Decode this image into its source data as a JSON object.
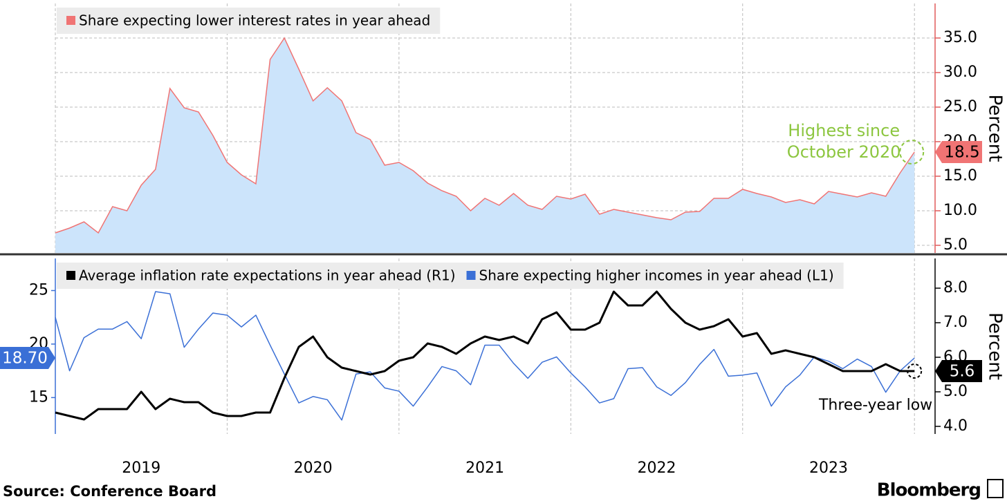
{
  "chart_data": [
    {
      "type": "area",
      "x": [
        2019,
        2019.083,
        2019.167,
        2019.25,
        2019.333,
        2019.417,
        2019.5,
        2019.583,
        2019.667,
        2019.75,
        2019.833,
        2019.917,
        2020,
        2020.083,
        2020.167,
        2020.25,
        2020.333,
        2020.417,
        2020.5,
        2020.583,
        2020.667,
        2020.75,
        2020.833,
        2020.917,
        2021,
        2021.083,
        2021.167,
        2021.25,
        2021.333,
        2021.417,
        2021.5,
        2021.583,
        2021.667,
        2021.75,
        2021.833,
        2021.917,
        2022,
        2022.083,
        2022.167,
        2022.25,
        2022.333,
        2022.417,
        2022.5,
        2022.583,
        2022.667,
        2022.75,
        2022.833,
        2022.917,
        2023,
        2023.083,
        2023.167,
        2023.25,
        2023.333,
        2023.417,
        2023.5,
        2023.583,
        2023.667,
        2023.75,
        2023.833,
        2023.917,
        2024
      ],
      "series": [
        {
          "name": "Share expecting lower interest rates in year ahead",
          "color": "#f07474",
          "fill": "#cce4fb",
          "axis": "y",
          "values": [
            6.8,
            7.5,
            8.4,
            6.8,
            10.6,
            10.0,
            13.7,
            16.0,
            27.7,
            24.9,
            24.3,
            20.9,
            17.0,
            15.2,
            13.9,
            31.9,
            35.0,
            30.5,
            25.9,
            27.8,
            25.9,
            21.3,
            20.3,
            16.6,
            17.0,
            15.8,
            14.0,
            12.9,
            12.1,
            10.0,
            11.8,
            10.8,
            12.5,
            10.8,
            10.2,
            12.1,
            11.7,
            12.4,
            9.5,
            10.2,
            9.8,
            9.4,
            9.0,
            8.7,
            9.8,
            9.9,
            11.8,
            11.8,
            13.1,
            12.5,
            12.0,
            11.2,
            11.6,
            11.0,
            12.8,
            12.4,
            12.0,
            12.6,
            12.1,
            15.5,
            18.5
          ]
        }
      ],
      "xlim": [
        2019,
        2024.12
      ],
      "xgrid": [
        2019,
        2020,
        2021,
        2022,
        2023,
        2024
      ],
      "ylim": [
        3.9,
        40
      ],
      "y_axis_side": "right",
      "y_axis_color": "#e05a5a",
      "ylabel": "Percent",
      "yticks": [
        {
          "value": 5,
          "label": "5.0"
        },
        {
          "value": 10,
          "label": "10.0"
        },
        {
          "value": 15,
          "label": "15.0"
        },
        {
          "value": 20,
          "label": "20.0"
        },
        {
          "value": 25,
          "label": "25.0"
        },
        {
          "value": 30,
          "label": "30.0"
        },
        {
          "value": 35,
          "label": "35.0"
        }
      ],
      "grid": "both",
      "annotations": [
        "Highest since",
        "October 2020"
      ],
      "annotation_color": "#8cc63f"
    },
    {
      "type": "line",
      "x": [
        2019,
        2019.083,
        2019.167,
        2019.25,
        2019.333,
        2019.417,
        2019.5,
        2019.583,
        2019.667,
        2019.75,
        2019.833,
        2019.917,
        2020,
        2020.083,
        2020.167,
        2020.25,
        2020.333,
        2020.417,
        2020.5,
        2020.583,
        2020.667,
        2020.75,
        2020.833,
        2020.917,
        2021,
        2021.083,
        2021.167,
        2021.25,
        2021.333,
        2021.417,
        2021.5,
        2021.583,
        2021.667,
        2021.75,
        2021.833,
        2021.917,
        2022,
        2022.083,
        2022.167,
        2022.25,
        2022.333,
        2022.417,
        2022.5,
        2022.583,
        2022.667,
        2022.75,
        2022.833,
        2022.917,
        2023,
        2023.083,
        2023.167,
        2023.25,
        2023.333,
        2023.417,
        2023.5,
        2023.583,
        2023.667,
        2023.75,
        2023.833,
        2023.917,
        2024
      ],
      "series": [
        {
          "name": "Average inflation rate expectations in year ahead (R1)",
          "color": "#000000",
          "axis": "y2",
          "width": 3,
          "values": [
            4.4,
            4.3,
            4.2,
            4.5,
            4.5,
            4.5,
            5.0,
            4.5,
            4.8,
            4.7,
            4.7,
            4.4,
            4.3,
            4.3,
            4.4,
            4.4,
            5.4,
            6.3,
            6.6,
            6.0,
            5.7,
            5.6,
            5.5,
            5.6,
            5.9,
            6.0,
            6.4,
            6.3,
            6.1,
            6.4,
            6.6,
            6.5,
            6.6,
            6.4,
            7.1,
            7.3,
            6.8,
            6.8,
            7.0,
            7.9,
            7.5,
            7.5,
            7.9,
            7.4,
            7.0,
            6.8,
            6.9,
            7.1,
            6.6,
            6.7,
            6.1,
            6.2,
            6.1,
            6.0,
            5.8,
            5.6,
            5.6,
            5.6,
            5.8,
            5.6,
            5.6
          ]
        },
        {
          "name": "Share expecting higher incomes in year ahead (L1)",
          "color": "#3a6fd6",
          "axis": "y",
          "width": 1.5,
          "values": [
            22.5,
            17.5,
            20.6,
            21.4,
            21.4,
            22.1,
            20.5,
            24.9,
            24.7,
            19.7,
            21.4,
            22.9,
            22.7,
            21.6,
            22.7,
            19.9,
            17.2,
            14.5,
            15.1,
            14.8,
            12.9,
            17.2,
            17.4,
            15.9,
            15.6,
            14.2,
            16.0,
            17.9,
            17.5,
            16.2,
            19.9,
            19.9,
            18.2,
            16.8,
            18.3,
            18.8,
            17.3,
            16.0,
            14.5,
            14.9,
            17.7,
            17.8,
            16.0,
            15.2,
            16.4,
            18.1,
            19.5,
            17.0,
            17.1,
            17.3,
            14.2,
            16.0,
            17.1,
            18.8,
            18.4,
            17.7,
            18.6,
            17.9,
            15.5,
            17.5,
            18.7
          ],
          "value_labels": [
            null,
            null,
            null,
            null,
            null,
            null,
            null,
            null,
            null,
            null,
            null,
            null,
            null,
            null,
            null,
            null,
            null,
            null,
            null,
            null,
            null,
            null,
            null,
            null,
            null,
            null,
            null,
            null,
            null,
            null,
            null,
            null,
            null,
            null,
            null,
            null,
            null,
            null,
            null,
            null,
            null,
            null,
            null,
            null,
            null,
            null,
            null,
            null,
            null,
            null,
            null,
            null,
            null,
            null,
            null,
            null,
            null,
            null,
            null,
            null,
            "18.70"
          ]
        }
      ],
      "xlim": [
        2019,
        2024.12
      ],
      "xgrid": [
        2019,
        2020,
        2021,
        2022,
        2023,
        2024
      ],
      "xticks": [
        {
          "value": 2019.5,
          "label": "2019"
        },
        {
          "value": 2020.5,
          "label": "2020"
        },
        {
          "value": 2021.5,
          "label": "2021"
        },
        {
          "value": 2022.5,
          "label": "2022"
        },
        {
          "value": 2023.5,
          "label": "2023"
        }
      ],
      "ylim": [
        11.6,
        28.0
      ],
      "yticks": [
        15,
        20,
        25
      ],
      "y_axis_color": "#3a6fd6",
      "y2lim": [
        3.78,
        8.86
      ],
      "y2ticks": [
        {
          "value": 4,
          "label": "4.0"
        },
        {
          "value": 5,
          "label": "5.0"
        },
        {
          "value": 6,
          "label": "6.0"
        },
        {
          "value": 7,
          "label": "7.0"
        },
        {
          "value": 8,
          "label": "8.0"
        }
      ],
      "y2_axis_color": "#000000",
      "y2label": "Percent",
      "grid": "x",
      "annotations": [
        "Three-year low"
      ],
      "annotation_color": "#000000"
    }
  ],
  "source": "Source: Conference Board",
  "brand": "Bloomberg"
}
